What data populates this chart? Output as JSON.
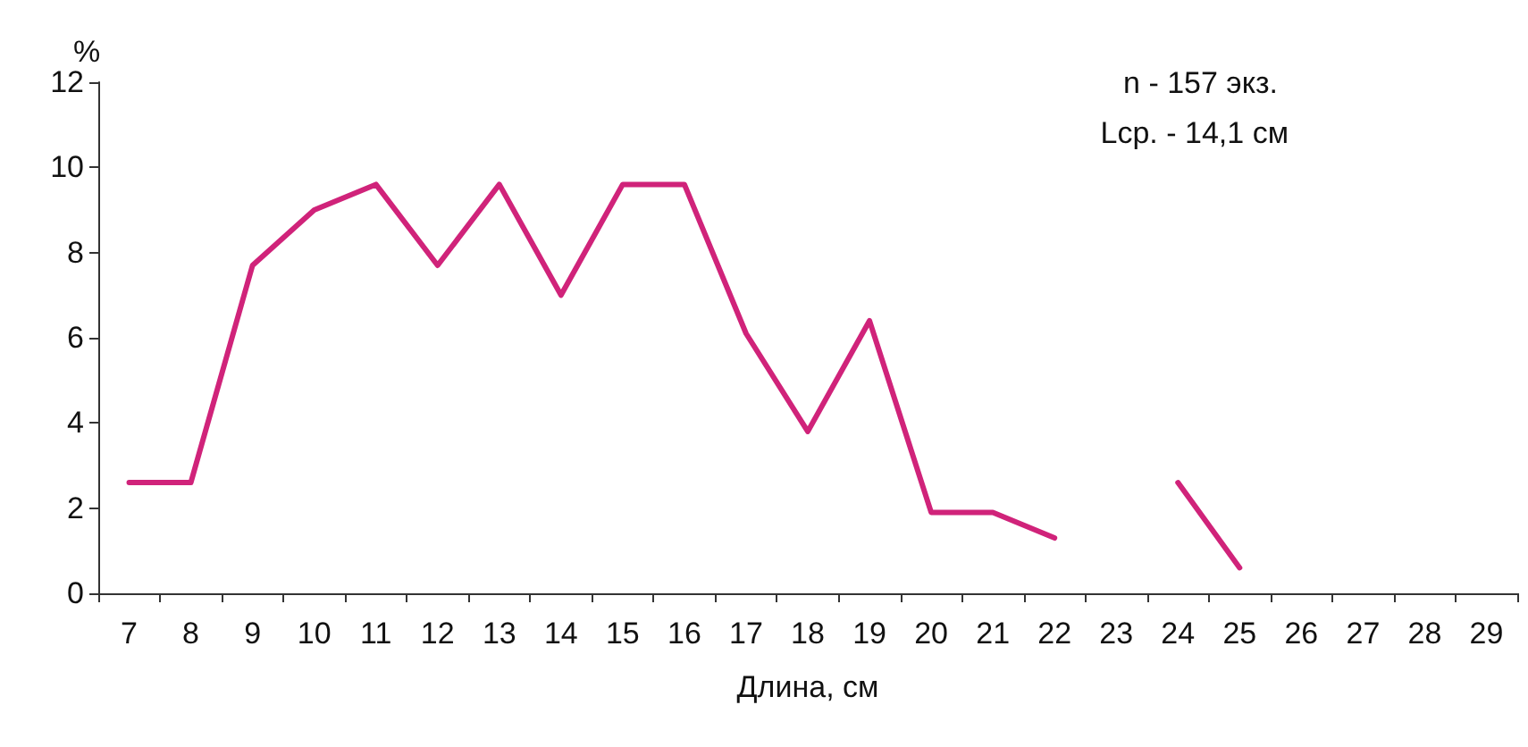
{
  "chart_data": {
    "type": "line",
    "xlabel": "Длина, см",
    "ylabel": "%",
    "annotations": [
      "n - 157 экз.",
      "Lср. - 14,1 см"
    ],
    "categories": [
      "7",
      "8",
      "9",
      "10",
      "11",
      "12",
      "13",
      "14",
      "15",
      "16",
      "17",
      "18",
      "19",
      "20",
      "21",
      "22",
      "23",
      "24",
      "25",
      "26",
      "27",
      "28",
      "29"
    ],
    "series": [
      {
        "color": "#d0237a",
        "values": [
          2.6,
          2.6,
          7.7,
          9.0,
          9.6,
          7.7,
          9.6,
          7.0,
          9.6,
          9.6,
          6.1,
          3.8,
          6.4,
          1.9,
          1.9,
          1.3,
          null,
          2.6,
          0.6,
          null,
          null,
          null,
          null
        ]
      }
    ],
    "ylim": [
      0,
      12
    ],
    "yticks": [
      0,
      2,
      4,
      6,
      8,
      10,
      12
    ],
    "grid": false,
    "marker": "none",
    "line_style": "solid"
  }
}
